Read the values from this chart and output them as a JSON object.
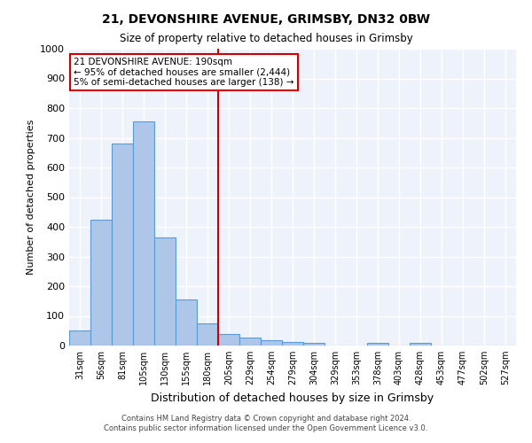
{
  "title1": "21, DEVONSHIRE AVENUE, GRIMSBY, DN32 0BW",
  "title2": "Size of property relative to detached houses in Grimsby",
  "xlabel": "Distribution of detached houses by size in Grimsby",
  "ylabel": "Number of detached properties",
  "categories": [
    "31sqm",
    "56sqm",
    "81sqm",
    "105sqm",
    "130sqm",
    "155sqm",
    "180sqm",
    "205sqm",
    "229sqm",
    "254sqm",
    "279sqm",
    "304sqm",
    "329sqm",
    "353sqm",
    "378sqm",
    "403sqm",
    "428sqm",
    "453sqm",
    "477sqm",
    "502sqm",
    "527sqm"
  ],
  "values": [
    50,
    425,
    680,
    755,
    365,
    155,
    75,
    38,
    28,
    18,
    12,
    8,
    0,
    0,
    8,
    0,
    8,
    0,
    0,
    0,
    0
  ],
  "bar_color": "#aec6e8",
  "bar_edge_color": "#5b9bd5",
  "background_color": "#eef2fb",
  "grid_color": "#ffffff",
  "vline_color": "#cc0000",
  "annotation_text": "21 DEVONSHIRE AVENUE: 190sqm\n← 95% of detached houses are smaller (2,444)\n5% of semi-detached houses are larger (138) →",
  "annotation_box_color": "#cc0000",
  "ylim": [
    0,
    1000
  ],
  "yticks": [
    0,
    100,
    200,
    300,
    400,
    500,
    600,
    700,
    800,
    900,
    1000
  ],
  "footer1": "Contains HM Land Registry data © Crown copyright and database right 2024.",
  "footer2": "Contains public sector information licensed under the Open Government Licence v3.0."
}
